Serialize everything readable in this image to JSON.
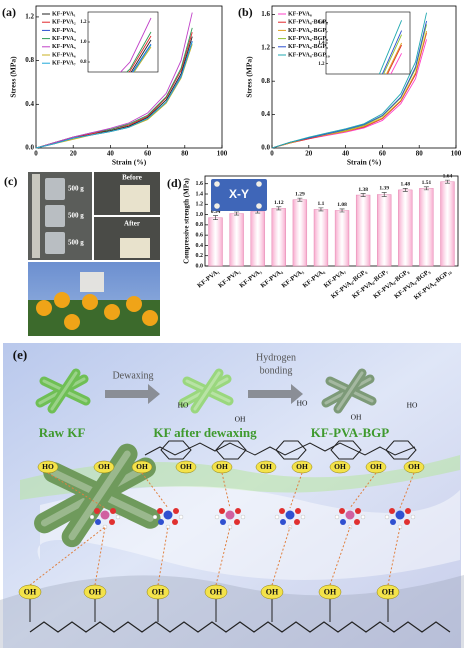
{
  "chart_data": [
    {
      "type": "line",
      "panel_label": "(a)",
      "xlabel": "Strain (%)",
      "ylabel": "Stress (MPa)",
      "x": [
        0,
        10,
        20,
        30,
        40,
        50,
        60,
        70,
        78,
        84
      ],
      "xlim": [
        0,
        100
      ],
      "xticks": [
        0,
        20,
        40,
        60,
        80,
        100
      ],
      "ylim": [
        0,
        1.3
      ],
      "yticks": [
        {
          "value": 0,
          "label": "0.0"
        },
        0.4,
        0.8,
        1.2
      ],
      "series": [
        {
          "name": "KF-PVA₁",
          "color": "#222222",
          "values": [
            0,
            0.05,
            0.09,
            0.13,
            0.16,
            0.2,
            0.28,
            0.44,
            0.68,
            1.02
          ]
        },
        {
          "name": "KF-PVA₂",
          "color": "#e0262b",
          "values": [
            0,
            0.05,
            0.1,
            0.13,
            0.17,
            0.21,
            0.29,
            0.46,
            0.71,
            1.06
          ]
        },
        {
          "name": "KF-PVA₃",
          "color": "#2b4fd0",
          "values": [
            0,
            0.04,
            0.09,
            0.12,
            0.15,
            0.19,
            0.27,
            0.42,
            0.66,
            0.98
          ]
        },
        {
          "name": "KF-PVA₄",
          "color": "#2e9a55",
          "values": [
            0,
            0.05,
            0.1,
            0.14,
            0.17,
            0.22,
            0.3,
            0.47,
            0.73,
            1.1
          ]
        },
        {
          "name": "KF-PVA₅",
          "color": "#c040c8",
          "values": [
            0,
            0.05,
            0.1,
            0.14,
            0.18,
            0.23,
            0.32,
            0.5,
            0.8,
            1.24
          ]
        },
        {
          "name": "KF-PVA₆",
          "color": "#c8b020",
          "values": [
            0,
            0.04,
            0.08,
            0.12,
            0.15,
            0.19,
            0.26,
            0.41,
            0.64,
            0.95
          ]
        },
        {
          "name": "KF-PVA₇",
          "color": "#20a8d8",
          "values": [
            0,
            0.04,
            0.09,
            0.12,
            0.15,
            0.19,
            0.27,
            0.42,
            0.65,
            0.97
          ]
        }
      ],
      "inset": {
        "xlim": [
          66,
          86
        ],
        "ylim": [
          0.7,
          1.3
        ],
        "yticks": [
          0.8,
          {
            "value": 1,
            "label": "1.0"
          },
          1.2
        ]
      }
    },
    {
      "type": "line",
      "panel_label": "(b)",
      "xlabel": "Strain (%)",
      "ylabel": "Stress (MPa)",
      "x": [
        0,
        10,
        20,
        30,
        40,
        50,
        60,
        70,
        78,
        84
      ],
      "xlim": [
        0,
        100
      ],
      "xticks": [
        0,
        20,
        40,
        60,
        80,
        100
      ],
      "ylim": [
        0,
        1.7
      ],
      "yticks": [
        {
          "value": 0,
          "label": "0.0"
        },
        0.4,
        0.8,
        1.2,
        1.6
      ],
      "series": [
        {
          "name": "KF-PVA₈",
          "color": "#ff40c8",
          "values": [
            0,
            0.06,
            0.11,
            0.15,
            0.19,
            0.24,
            0.33,
            0.53,
            0.83,
            1.3
          ]
        },
        {
          "name": "KF-PVA₈-BGP₆",
          "color": "#e0262b",
          "values": [
            0,
            0.06,
            0.11,
            0.16,
            0.2,
            0.25,
            0.35,
            0.56,
            0.88,
            1.38
          ]
        },
        {
          "name": "KF-PVA₈-BGP₇",
          "color": "#e0a020",
          "values": [
            0,
            0.06,
            0.12,
            0.16,
            0.2,
            0.26,
            0.36,
            0.57,
            0.9,
            1.4
          ]
        },
        {
          "name": "KF-PVA₈-BGP₈",
          "color": "#90c030",
          "values": [
            0,
            0.07,
            0.12,
            0.17,
            0.21,
            0.27,
            0.38,
            0.6,
            0.95,
            1.48
          ]
        },
        {
          "name": "KF-PVA₈-BGP₉",
          "color": "#2b4fd0",
          "values": [
            0,
            0.07,
            0.12,
            0.17,
            0.22,
            0.28,
            0.39,
            0.61,
            0.97,
            1.52
          ]
        },
        {
          "name": "KF-PVA₈-BGP₁₀",
          "color": "#20a8b0",
          "values": [
            0,
            0.07,
            0.13,
            0.18,
            0.23,
            0.29,
            0.41,
            0.65,
            1.03,
            1.62
          ]
        }
      ],
      "inset": {
        "xlim": [
          66,
          86
        ],
        "ylim": [
          1.1,
          1.7
        ],
        "yticks": [
          1.2,
          1.4,
          1.6
        ]
      }
    },
    {
      "type": "bar",
      "panel_label": "(d)",
      "ylabel": "Compressive strength (MPa)",
      "annotation": "X-Y",
      "categories": [
        "KF-PVA₁",
        "KF-PVA₂",
        "KF-PVA₃",
        "KF-PVA₄",
        "KF-PVA₅",
        "KF-PVA₆",
        "KF-PVA₇",
        "KF-PVA₈-BGP₆",
        "KF-PVA₈-BGP₇",
        "KF-PVA₈-BGP₈",
        "KF-PVA₈-BGP₉",
        "KF-PVA₈-BGP₁₀"
      ],
      "values": [
        0.94,
        1.02,
        1.06,
        1.12,
        1.29,
        1.1,
        1.08,
        1.38,
        1.39,
        1.48,
        1.51,
        1.64
      ],
      "errors": [
        0.04,
        0.03,
        0.03,
        0.03,
        0.03,
        0.03,
        0.03,
        0.03,
        0.04,
        0.03,
        0.03,
        0.03
      ],
      "color": "#f7a8cc",
      "ylim": [
        0,
        1.75
      ],
      "yticks": [
        {
          "value": 0,
          "label": "0.0"
        },
        0.2,
        0.4,
        0.6,
        0.8,
        {
          "value": 1,
          "label": "1.0"
        },
        1.2,
        1.4,
        1.6
      ]
    }
  ],
  "photos": {
    "panel_label": "(c)",
    "weights": [
      "500 g",
      "500 g",
      "500 g"
    ],
    "before": "Before",
    "after": "After"
  },
  "diagram": {
    "panel_label": "(e)",
    "raw": "Raw KF",
    "step1": "Dewaxing",
    "dewaxed": "KF after dewaxing",
    "step2": [
      "Hydrogen",
      "bonding"
    ],
    "product": "KF-PVA-BGP",
    "cellulose_top": [
      "HO",
      "OH",
      "HO",
      "OH",
      "HO"
    ],
    "cellulose_groups": [
      "HO",
      "OH",
      "OH",
      "OH",
      "OH",
      "OH",
      "OH",
      "OH",
      "OH",
      "OH"
    ],
    "pva_groups": [
      "OH",
      "OH",
      "OH",
      "OH",
      "OH",
      "OH",
      "OH"
    ]
  }
}
